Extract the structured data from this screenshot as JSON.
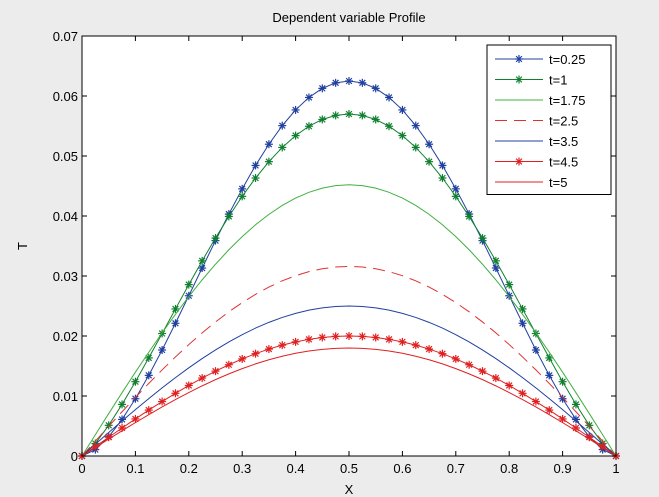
{
  "chart_data": {
    "type": "line",
    "title": "Dependent variable Profile",
    "xlabel": "X",
    "ylabel": "T",
    "xlim": [
      0,
      1
    ],
    "ylim": [
      0,
      0.07
    ],
    "xticks": [
      "0",
      "0.1",
      "0.2",
      "0.3",
      "0.4",
      "0.5",
      "0.6",
      "0.7",
      "0.8",
      "0.9",
      "1"
    ],
    "yticks": [
      "0",
      "0.01",
      "0.02",
      "0.03",
      "0.04",
      "0.05",
      "0.06",
      "0.07"
    ],
    "grid": false,
    "legend_position": "top-right",
    "series": [
      {
        "name": "t=0.25",
        "peak": 0.0625,
        "shape": 1.6,
        "color": "#2040a0",
        "line": "solid",
        "marker": "star"
      },
      {
        "name": "t=1",
        "peak": 0.057,
        "shape": 1.3,
        "color": "#108030",
        "line": "solid",
        "marker": "star"
      },
      {
        "name": "t=1.75",
        "peak": 0.0452,
        "shape": 1.0,
        "color": "#40b040",
        "line": "solid",
        "marker": "none"
      },
      {
        "name": "t=2.5",
        "peak": 0.0316,
        "shape": 1.0,
        "color": "#e03030",
        "line": "dashed",
        "marker": "none"
      },
      {
        "name": "t=3.5",
        "peak": 0.025,
        "shape": 1.0,
        "color": "#2040a0",
        "line": "solid",
        "marker": "none"
      },
      {
        "name": "t=4.5",
        "peak": 0.02,
        "shape": 1.0,
        "color": "#e02020",
        "line": "solid",
        "marker": "star"
      },
      {
        "name": "t=5",
        "peak": 0.018,
        "shape": 1.0,
        "color": "#e02020",
        "line": "solid",
        "marker": "none"
      }
    ]
  }
}
